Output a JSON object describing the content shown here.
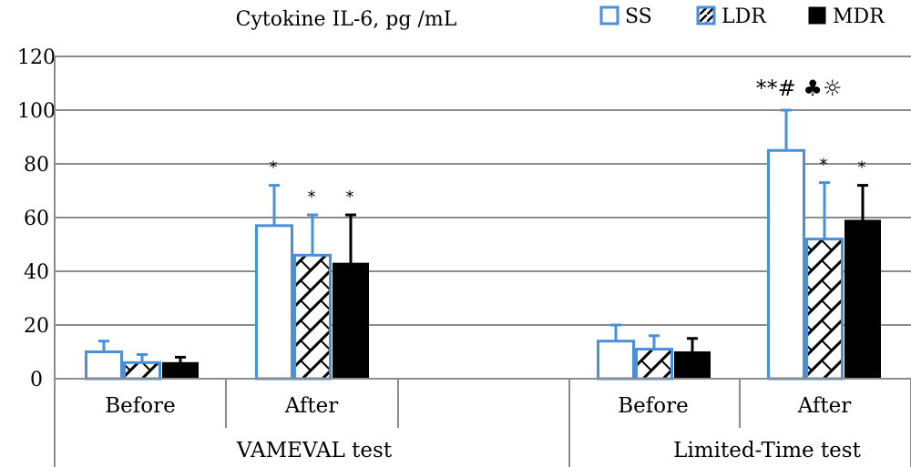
{
  "chart_data": {
    "type": "bar",
    "title": "Cytokine IL-6, pg /mL",
    "ylim": [
      0,
      120
    ],
    "yticks": [
      0,
      20,
      40,
      60,
      80,
      100,
      120
    ],
    "grid": true,
    "legend_position": "top-right",
    "groups": [
      "VAMEVAL test",
      "Limited-Time test"
    ],
    "categories": [
      "Before",
      "After",
      "Before",
      "After"
    ],
    "series": [
      {
        "name": "SS",
        "style": "open",
        "color": "#4a90d9",
        "values": [
          10,
          57,
          14,
          85
        ],
        "errors": [
          4,
          15,
          6,
          15
        ],
        "annotations": [
          "",
          "*",
          "",
          "**#  ♣☼"
        ]
      },
      {
        "name": "LDR",
        "style": "hatched",
        "color": "#4a90d9",
        "values": [
          6,
          46,
          11,
          52
        ],
        "errors": [
          3,
          15,
          5,
          21
        ],
        "annotations": [
          "",
          "*",
          "",
          "*"
        ]
      },
      {
        "name": "MDR",
        "style": "solid",
        "color": "#000000",
        "values": [
          6,
          43,
          10,
          59
        ],
        "errors": [
          2,
          18,
          5,
          13
        ],
        "annotations": [
          "",
          "*",
          "",
          "*"
        ]
      }
    ]
  }
}
